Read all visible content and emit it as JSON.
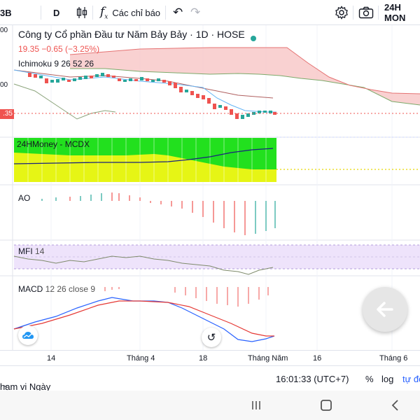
{
  "toolbar": {
    "symbol_fragment": "3B",
    "interval": "D",
    "indicators_label": "Các chỉ báo",
    "brand": "24H MON"
  },
  "legend": {
    "title": "Công ty Cổ phần Đầu tư Năm Bảy Bảy · 1D · HOSE",
    "ohlc": "19.35 −0.65 (−3.25%)",
    "ichimoku": "Ichimoku 9 26 52 26"
  },
  "price_axis": {
    "labels": [
      "00",
      "00"
    ],
    "last_price_badge": ".35"
  },
  "panes": {
    "mcdx": "24HMoney - MCDX",
    "ao": "AO",
    "mfi_name": "MFI",
    "mfi_param": "14",
    "macd_name": "MACD",
    "macd_param": "12 26 close 9"
  },
  "xaxis": {
    "ticks": [
      "14",
      "Tháng 4",
      "18",
      "Tháng Năm",
      "16",
      "Tháng 6"
    ]
  },
  "bottombar": {
    "range": "hạm vi Ngày",
    "time": "16:01:33 (UTC+7)",
    "percent": "%",
    "log": "log",
    "auto": "tự độ"
  },
  "colors": {
    "up": "#26a69a",
    "down": "#ef5350",
    "cloud": "#f8c9c9",
    "mcdx_green": "#22e01e",
    "mcdx_yellow": "#e6f515",
    "mfi_band": "#eee3fb",
    "accent_blue": "#2962ff"
  },
  "icons": {
    "candles": "candlestick-icon",
    "fx": "function-icon",
    "undo": "undo-icon",
    "redo": "redo-icon",
    "settings": "gear-icon",
    "camera": "camera-icon",
    "back": "arrow-left-icon",
    "reload": "reload-icon",
    "logo": "cloud-logo-icon"
  }
}
